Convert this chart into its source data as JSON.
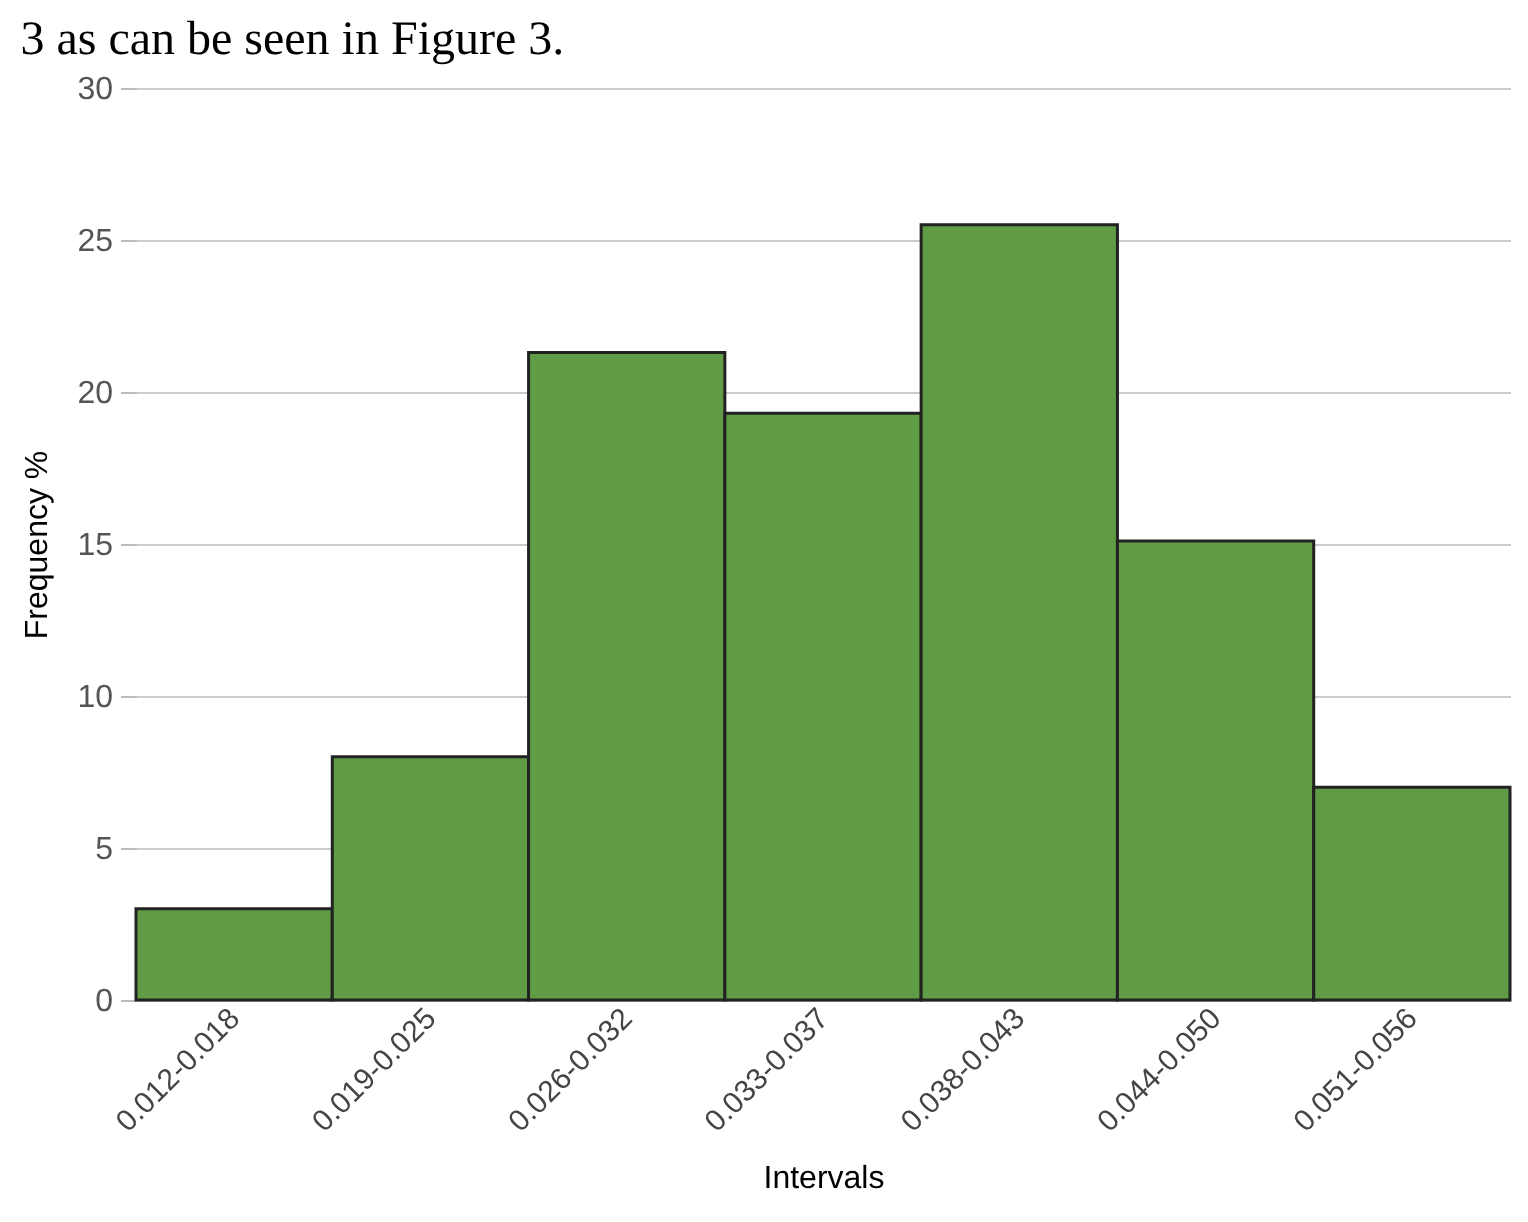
{
  "chart_data": {
    "type": "bar",
    "categories": [
      "0.012-0.018",
      "0.019-0.025",
      "0.026-0.032",
      "0.033-0.037",
      "0.038-0.043",
      "0.044-0.050",
      "0.051-0.056"
    ],
    "values": [
      3,
      8,
      21.3,
      19.3,
      25.5,
      15.1,
      7
    ],
    "color": "#5f9c45",
    "xlabel": "Intervals",
    "ylabel": "Frequency %",
    "ylim": [
      0,
      30
    ],
    "yticks": [
      0,
      5,
      10,
      15,
      20,
      25,
      30
    ],
    "grid": "y",
    "annotations": [
      "3 as can be seen in Figure 3."
    ]
  }
}
